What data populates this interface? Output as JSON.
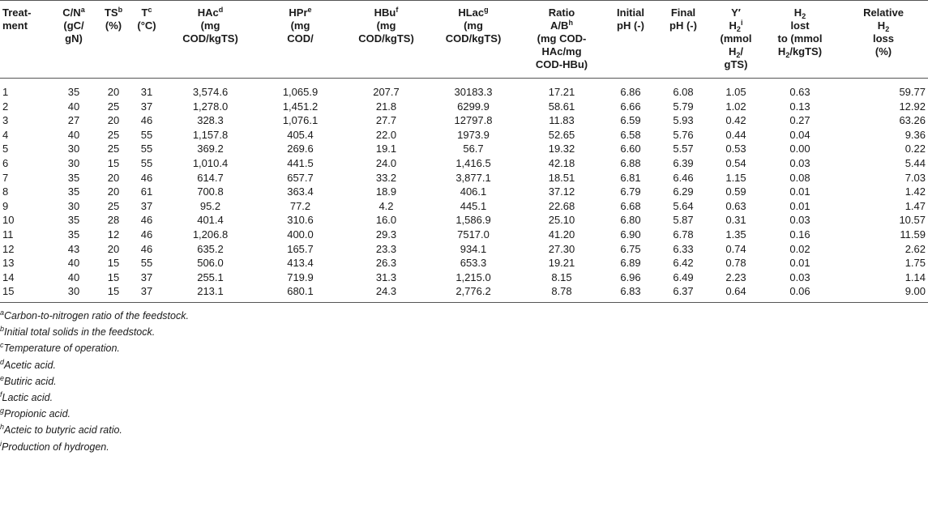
{
  "table": {
    "headers": [
      {
        "lines": [
          "Treat-",
          "ment"
        ],
        "sup": ""
      },
      {
        "lines": [
          "C/N",
          "(gC/",
          "gN)"
        ],
        "sup": "a"
      },
      {
        "lines": [
          "TS",
          "(%)"
        ],
        "sup": "b"
      },
      {
        "lines": [
          "T",
          "(°C)"
        ],
        "sup": "c"
      },
      {
        "lines": [
          "HAc",
          "(mg",
          "COD/kgTS)"
        ],
        "sup": "d"
      },
      {
        "lines": [
          "HPr",
          "(mg",
          "COD/"
        ],
        "sup": "e"
      },
      {
        "lines": [
          "HBu",
          "(mg",
          "COD/kgTS)"
        ],
        "sup": "f"
      },
      {
        "lines": [
          "HLac",
          "(mg",
          "COD/kgTS)"
        ],
        "sup": "g"
      },
      {
        "lines": [
          "Ratio",
          "A/B",
          "(mg COD-",
          "HAc/mg",
          "COD-HBu)"
        ],
        "sup": "h"
      },
      {
        "lines": [
          "Initial",
          "pH (-)"
        ],
        "sup": ""
      },
      {
        "lines": [
          "Final",
          "pH (-)"
        ],
        "sup": ""
      },
      {
        "lines": [
          "Y′",
          "H2",
          "(mmol",
          "H2/",
          "gTS)"
        ],
        "sup": "i"
      },
      {
        "lines": [
          "H2",
          "lost",
          "to (mmol",
          "H2/kgTS)"
        ],
        "sup": ""
      },
      {
        "lines": [
          "Relative",
          "H2",
          "loss",
          "(%)"
        ],
        "sup": ""
      }
    ],
    "rows": [
      [
        "1",
        "35",
        "20",
        "31",
        "3,574.6",
        "1,065.9",
        "207.7",
        "30183.3",
        "17.21",
        "6.86",
        "6.08",
        "1.05",
        "0.63",
        "59.77"
      ],
      [
        "2",
        "40",
        "25",
        "37",
        "1,278.0",
        "1,451.2",
        "21.8",
        "6299.9",
        "58.61",
        "6.66",
        "5.79",
        "1.02",
        "0.13",
        "12.92"
      ],
      [
        "3",
        "27",
        "20",
        "46",
        "328.3",
        "1,076.1",
        "27.7",
        "12797.8",
        "11.83",
        "6.59",
        "5.93",
        "0.42",
        "0.27",
        "63.26"
      ],
      [
        "4",
        "40",
        "25",
        "55",
        "1,157.8",
        "405.4",
        "22.0",
        "1973.9",
        "52.65",
        "6.58",
        "5.76",
        "0.44",
        "0.04",
        "9.36"
      ],
      [
        "5",
        "30",
        "25",
        "55",
        "369.2",
        "269.6",
        "19.1",
        "56.7",
        "19.32",
        "6.60",
        "5.57",
        "0.53",
        "0.00",
        "0.22"
      ],
      [
        "6",
        "30",
        "15",
        "55",
        "1,010.4",
        "441.5",
        "24.0",
        "1,416.5",
        "42.18",
        "6.88",
        "6.39",
        "0.54",
        "0.03",
        "5.44"
      ],
      [
        "7",
        "35",
        "20",
        "46",
        "614.7",
        "657.7",
        "33.2",
        "3,877.1",
        "18.51",
        "6.81",
        "6.46",
        "1.15",
        "0.08",
        "7.03"
      ],
      [
        "8",
        "35",
        "20",
        "61",
        "700.8",
        "363.4",
        "18.9",
        "406.1",
        "37.12",
        "6.79",
        "6.29",
        "0.59",
        "0.01",
        "1.42"
      ],
      [
        "9",
        "30",
        "25",
        "37",
        "95.2",
        "77.2",
        "4.2",
        "445.1",
        "22.68",
        "6.68",
        "5.64",
        "0.63",
        "0.01",
        "1.47"
      ],
      [
        "10",
        "35",
        "28",
        "46",
        "401.4",
        "310.6",
        "16.0",
        "1,586.9",
        "25.10",
        "6.80",
        "5.87",
        "0.31",
        "0.03",
        "10.57"
      ],
      [
        "11",
        "35",
        "12",
        "46",
        "1,206.8",
        "400.0",
        "29.3",
        "7517.0",
        "41.20",
        "6.90",
        "6.78",
        "1.35",
        "0.16",
        "11.59"
      ],
      [
        "12",
        "43",
        "20",
        "46",
        "635.2",
        "165.7",
        "23.3",
        "934.1",
        "27.30",
        "6.75",
        "6.33",
        "0.74",
        "0.02",
        "2.62"
      ],
      [
        "13",
        "40",
        "15",
        "55",
        "506.0",
        "413.4",
        "26.3",
        "653.3",
        "19.21",
        "6.89",
        "6.42",
        "0.78",
        "0.01",
        "1.75"
      ],
      [
        "14",
        "40",
        "15",
        "37",
        "255.1",
        "719.9",
        "31.3",
        "1,215.0",
        "8.15",
        "6.96",
        "6.49",
        "2.23",
        "0.03",
        "1.14"
      ],
      [
        "15",
        "30",
        "15",
        "37",
        "213.1",
        "680.1",
        "24.3",
        "2,776.2",
        "8.78",
        "6.83",
        "6.37",
        "0.64",
        "0.06",
        "9.00"
      ]
    ]
  },
  "footnotes": [
    {
      "mark": "a",
      "text": "Carbon-to-nitrogen ratio of the feedstock."
    },
    {
      "mark": "b",
      "text": "Initial total solids in the feedstock."
    },
    {
      "mark": "c",
      "text": "Temperature of operation."
    },
    {
      "mark": "d",
      "text": "Acetic acid."
    },
    {
      "mark": "e",
      "text": "Butiric acid."
    },
    {
      "mark": "f",
      "text": "Lactic acid."
    },
    {
      "mark": "g",
      "text": "Propionic acid."
    },
    {
      "mark": "h",
      "text": "Acteic to butyric acid ratio."
    },
    {
      "mark": "i",
      "text": "Production of hydrogen."
    }
  ]
}
